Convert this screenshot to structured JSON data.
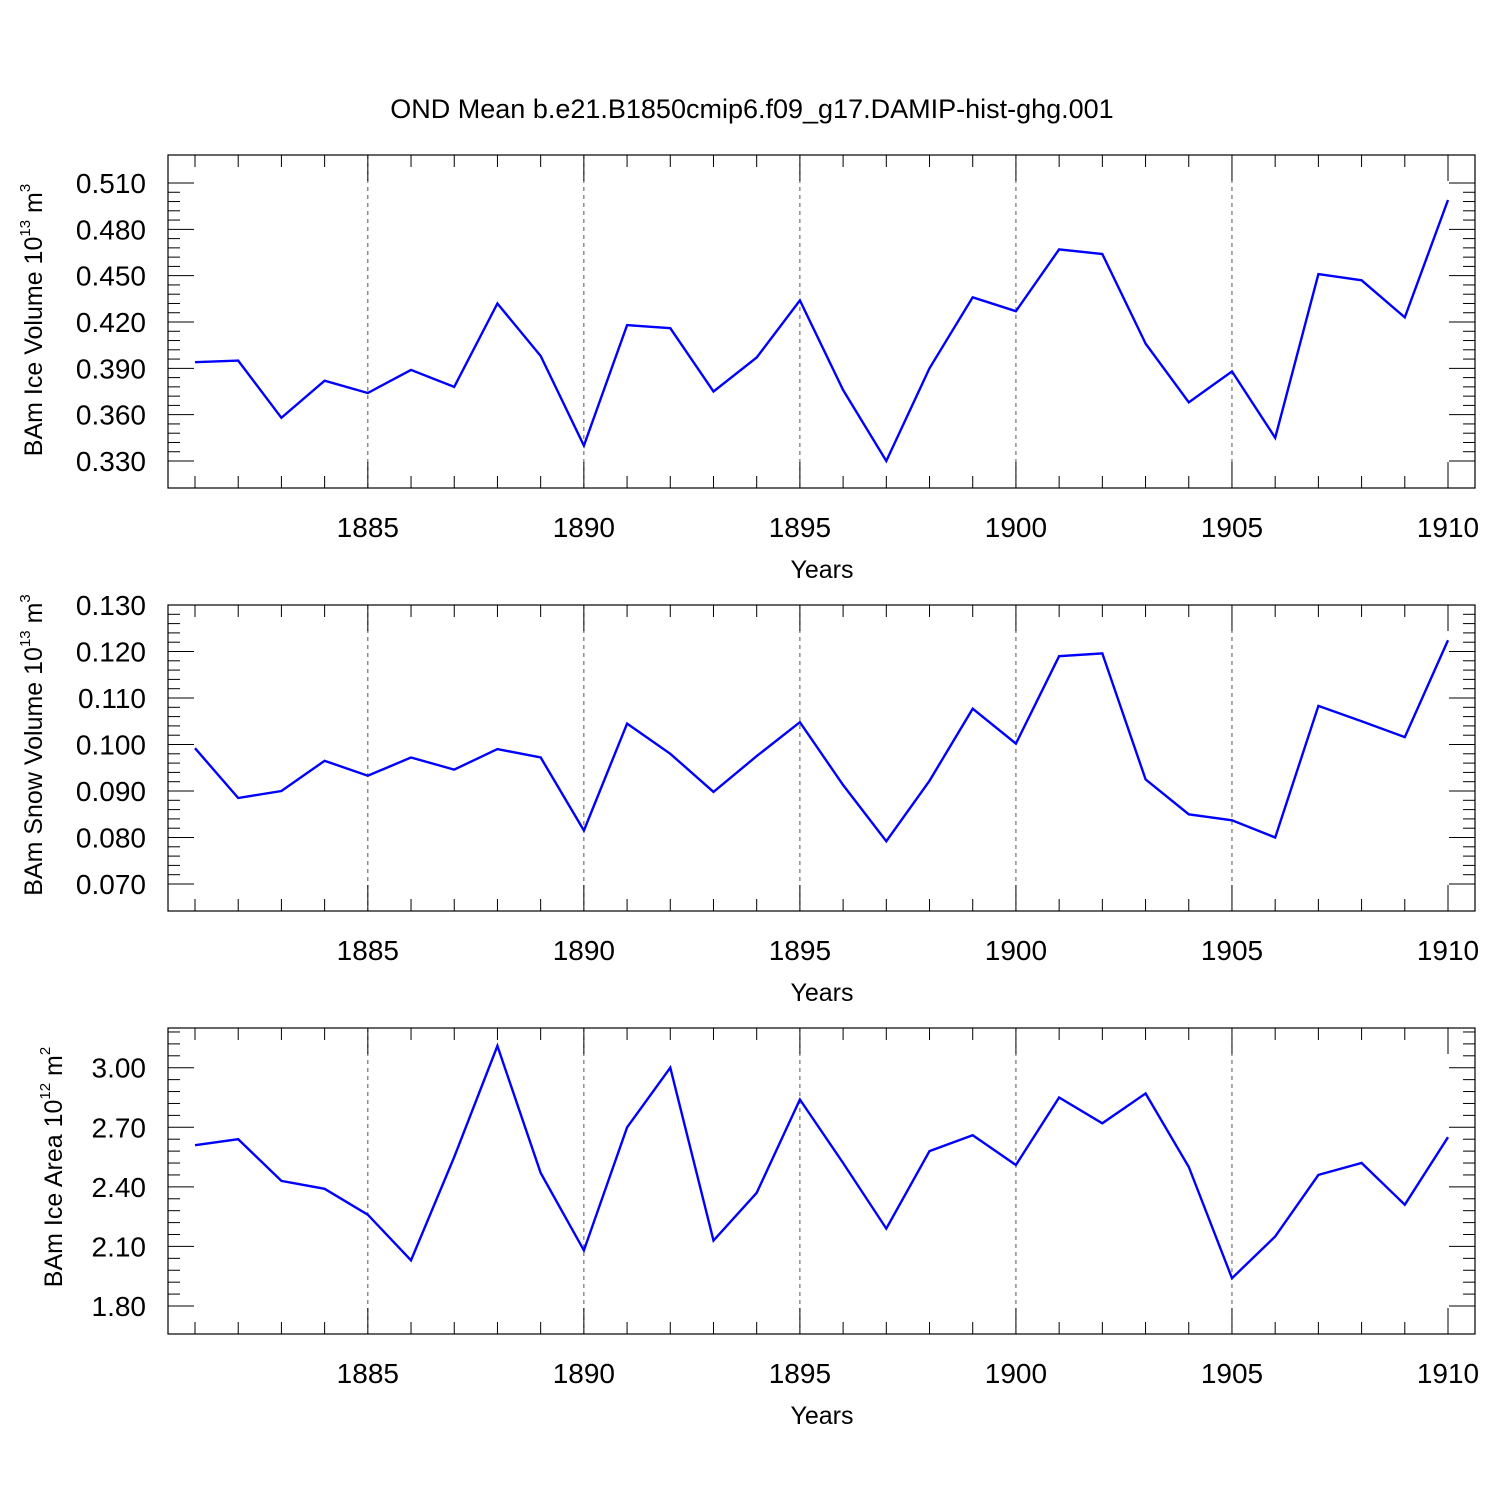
{
  "title": "OND Mean b.e21.B1850cmip6.f09_g17.DAMIP-hist-ghg.001",
  "colors": {
    "series": "#0000ff",
    "axes": "#000000",
    "grid": "#000000"
  },
  "chart_data": [
    {
      "type": "line",
      "xlabel": "Years",
      "ylabel": {
        "text": "BAm Ice Volume 10",
        "exponent": "13",
        "unit": " m",
        "unit_exponent": "3"
      },
      "xlim": [
        1881,
        1910
      ],
      "ylim": [
        0.33,
        0.51
      ],
      "xticks": [
        "1885",
        "1890",
        "1895",
        "1900",
        "1905",
        "1910"
      ],
      "yticks": [
        "0.330",
        "0.360",
        "0.390",
        "0.420",
        "0.450",
        "0.480",
        "0.510"
      ],
      "grid": "vertical dashed at major x ticks",
      "x": [
        1881,
        1882,
        1883,
        1884,
        1885,
        1886,
        1887,
        1888,
        1889,
        1890,
        1891,
        1892,
        1893,
        1894,
        1895,
        1896,
        1897,
        1898,
        1899,
        1900,
        1901,
        1902,
        1903,
        1904,
        1905,
        1906,
        1907,
        1908,
        1909,
        1910
      ],
      "series": [
        {
          "values": [
            0.394,
            0.395,
            0.358,
            0.382,
            0.374,
            0.389,
            0.378,
            0.432,
            0.398,
            0.34,
            0.418,
            0.416,
            0.375,
            0.397,
            0.434,
            0.376,
            0.33,
            0.39,
            0.436,
            0.427,
            0.467,
            0.464,
            0.406,
            0.368,
            0.388,
            0.345,
            0.451,
            0.447,
            0.423,
            0.499
          ]
        }
      ]
    },
    {
      "type": "line",
      "xlabel": "Years",
      "ylabel": {
        "text": "BAm Snow Volume 10",
        "exponent": "13",
        "unit": " m",
        "unit_exponent": "3"
      },
      "xlim": [
        1881,
        1910
      ],
      "ylim": [
        0.07,
        0.13
      ],
      "xticks": [
        "1885",
        "1890",
        "1895",
        "1900",
        "1905",
        "1910"
      ],
      "yticks": [
        "0.070",
        "0.080",
        "0.090",
        "0.100",
        "0.110",
        "0.120",
        "0.130"
      ],
      "grid": "vertical dashed at major x ticks",
      "x": [
        1881,
        1882,
        1883,
        1884,
        1885,
        1886,
        1887,
        1888,
        1889,
        1890,
        1891,
        1892,
        1893,
        1894,
        1895,
        1896,
        1897,
        1898,
        1899,
        1900,
        1901,
        1902,
        1903,
        1904,
        1905,
        1906,
        1907,
        1908,
        1909,
        1910
      ],
      "series": [
        {
          "values": [
            0.0992,
            0.0885,
            0.09,
            0.0965,
            0.0933,
            0.0972,
            0.0946,
            0.099,
            0.0972,
            0.0815,
            0.1045,
            0.098,
            0.0898,
            0.0975,
            0.1048,
            0.0913,
            0.0792,
            0.0922,
            0.1077,
            0.1002,
            0.119,
            0.1196,
            0.0925,
            0.085,
            0.0837,
            0.08,
            0.1083,
            0.105,
            0.1016,
            0.1224
          ]
        }
      ]
    },
    {
      "type": "line",
      "xlabel": "Years",
      "ylabel": {
        "text": "BAm Ice Area 10",
        "exponent": "12",
        "unit": " m",
        "unit_exponent": "2"
      },
      "xlim": [
        1881,
        1910
      ],
      "ylim": [
        1.8,
        3.2
      ],
      "xticks": [
        "1885",
        "1890",
        "1895",
        "1900",
        "1905",
        "1910"
      ],
      "yticks": [
        "1.80",
        "2.10",
        "2.40",
        "2.70",
        "3.00"
      ],
      "grid": "vertical dashed at major x ticks",
      "x": [
        1881,
        1882,
        1883,
        1884,
        1885,
        1886,
        1887,
        1888,
        1889,
        1890,
        1891,
        1892,
        1893,
        1894,
        1895,
        1896,
        1897,
        1898,
        1899,
        1900,
        1901,
        1902,
        1903,
        1904,
        1905,
        1906,
        1907,
        1908,
        1909,
        1910
      ],
      "series": [
        {
          "values": [
            2.61,
            2.64,
            2.43,
            2.39,
            2.26,
            2.03,
            2.55,
            3.11,
            2.47,
            2.08,
            2.7,
            3.0,
            2.13,
            2.37,
            2.84,
            2.52,
            2.19,
            2.58,
            2.66,
            2.51,
            2.85,
            2.72,
            2.87,
            2.5,
            1.94,
            2.15,
            2.46,
            2.52,
            2.31,
            2.65
          ]
        }
      ]
    }
  ]
}
